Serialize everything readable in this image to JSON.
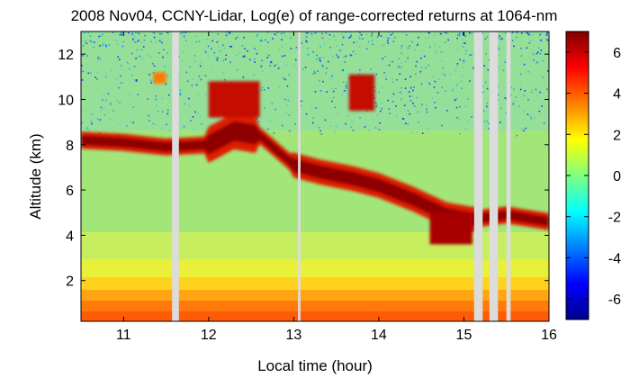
{
  "chart_data": {
    "type": "heatmap",
    "title": "2008 Nov04, CCNY-Lidar, Log(e) of range-corrected returns at 1064-nm",
    "xlabel": "Local time (hour)",
    "ylabel": "Altitude (km)",
    "xlim": [
      10.5,
      16.0
    ],
    "ylim": [
      0.2,
      13.0
    ],
    "xticks": [
      "11",
      "12",
      "13",
      "14",
      "15",
      "16"
    ],
    "yticks": [
      "2",
      "4",
      "6",
      "8",
      "10",
      "12"
    ],
    "colorbar": {
      "range": [
        -7,
        7
      ],
      "ticks": [
        "6",
        "4",
        "2",
        "0",
        "-2",
        "-4",
        "-6"
      ],
      "colormap": "jet"
    },
    "data_gaps_hours": [
      [
        11.57,
        11.65
      ],
      [
        13.05,
        13.08
      ],
      [
        15.12,
        15.22
      ],
      [
        15.3,
        15.4
      ],
      [
        15.5,
        15.55
      ]
    ],
    "layers": [
      {
        "x": [
          10.5,
          11.0,
          11.5,
          12.0,
          12.3,
          12.6,
          13.0,
          13.3,
          13.7,
          14.0,
          14.4,
          14.8,
          15.1,
          15.5,
          16.0
        ],
        "y": [
          8.2,
          8.1,
          7.9,
          8.0,
          8.6,
          8.4,
          7.1,
          6.8,
          6.5,
          6.2,
          5.6,
          4.9,
          4.7,
          4.9,
          4.6
        ]
      }
    ],
    "colors": {
      "background": "#9ee57a",
      "noise": "#3a8fe0",
      "boundary_layer": "#ff8c00",
      "cloud": "#b00000",
      "gap": "#dcdcdc"
    }
  }
}
